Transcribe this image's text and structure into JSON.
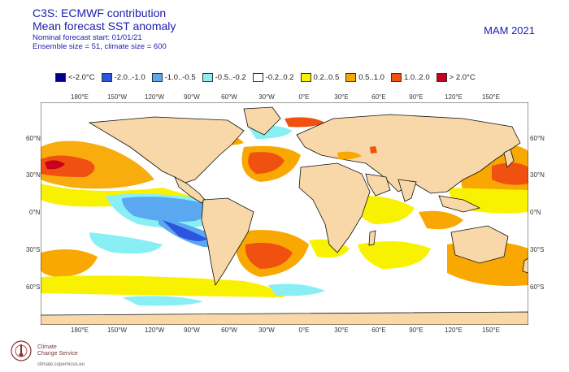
{
  "header": {
    "line1": "C3S: ECMWF contribution",
    "line2": "Mean forecast SST anomaly",
    "line3": "Nominal forecast start: 01/01/21",
    "line4": "Ensemble size = 51, climate size = 600",
    "season": "MAM 2021"
  },
  "legend": [
    {
      "label": "<-2.0°C",
      "color": "#00008f"
    },
    {
      "label": "-2.0..-1.0",
      "color": "#2c54e0"
    },
    {
      "label": "-1.0..-0.5",
      "color": "#5aa8f0"
    },
    {
      "label": "-0.5..-0.2",
      "color": "#88f0f4"
    },
    {
      "label": "-0.2..0.2",
      "color": "#ffffff"
    },
    {
      "label": "0.2..0.5",
      "color": "#f8f200"
    },
    {
      "label": "0.5..1.0",
      "color": "#f8a800"
    },
    {
      "label": "1.0..2.0",
      "color": "#f05010"
    },
    {
      "label": "> 2.0°C",
      "color": "#c8001c"
    }
  ],
  "axes": {
    "x_ticks": [
      "180°E",
      "150°W",
      "120°W",
      "90°W",
      "60°W",
      "30°W",
      "0°E",
      "30°E",
      "60°E",
      "90°E",
      "120°E",
      "150°E"
    ],
    "y_ticks_left": [
      "60°N",
      "30°N",
      "0°N",
      "30°S",
      "60°S"
    ],
    "y_ticks_right": [
      "60°N",
      "30°N",
      "0°N",
      "30°S",
      "60°S"
    ]
  },
  "colors": {
    "land": "#f8d8a8",
    "ocean": "#ffffff",
    "coast": "#111111"
  },
  "footer": {
    "logo_line1": "Climate",
    "logo_line2": "Change Service",
    "url": "climate.copernicus.eu"
  }
}
